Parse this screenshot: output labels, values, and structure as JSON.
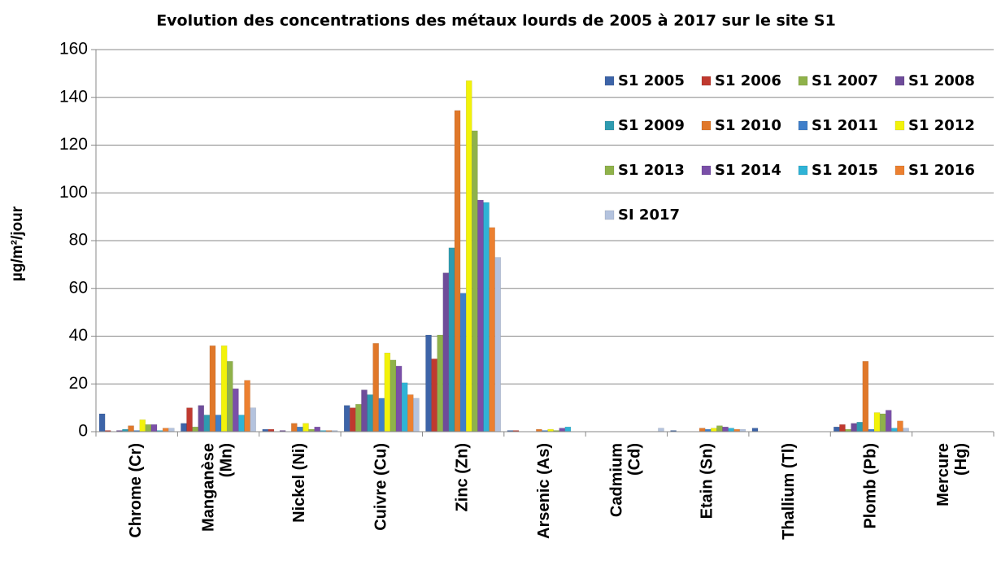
{
  "chart_data": {
    "type": "bar",
    "title": "Evolution des concentrations des métaux lourds de 2005 à 2017 sur le site S1",
    "y_label": "µg/m²/jour",
    "categories": [
      [
        "Chrome (Cr)"
      ],
      [
        "Manganèse",
        "(Mn)"
      ],
      [
        "Nickel (Ni)"
      ],
      [
        "Cuivre (Cu)"
      ],
      [
        "Zinc (Zn)"
      ],
      [
        "Arsenic (As)"
      ],
      [
        "Cadmium",
        "(Cd)"
      ],
      [
        "Etain (Sn)"
      ],
      [
        "Thallium (Tl)"
      ],
      [
        "Plomb (Pb)"
      ],
      [
        "Mercure",
        "(Hg)"
      ]
    ],
    "series": [
      {
        "name": "S1 2005",
        "color": "#3d64a8",
        "values": [
          7.5,
          3.5,
          1,
          11,
          40.5,
          0.5,
          0.1,
          0.5,
          1.5,
          2,
          0.1
        ]
      },
      {
        "name": "S1 2006",
        "color": "#c0392f",
        "values": [
          0.5,
          10,
          1,
          10,
          30.5,
          0.5,
          0.1,
          0,
          0,
          3,
          0.1
        ]
      },
      {
        "name": "S1 2007",
        "color": "#8fb24a",
        "values": [
          0,
          2,
          0,
          11.5,
          40.5,
          0,
          0.1,
          0,
          0,
          1,
          0.1
        ]
      },
      {
        "name": "S1 2008",
        "color": "#6e4c9a",
        "values": [
          0.5,
          11,
          0.5,
          17.5,
          66.5,
          0,
          0.1,
          0,
          0,
          3.5,
          0.1
        ]
      },
      {
        "name": "S1 2009",
        "color": "#2e9bb0",
        "values": [
          1,
          7,
          0,
          15.5,
          77,
          0,
          0.1,
          0,
          0,
          4,
          0.1
        ]
      },
      {
        "name": "S1 2010",
        "color": "#e0782a",
        "values": [
          2.5,
          36,
          3.5,
          37,
          134.5,
          1,
          0.1,
          1.5,
          0,
          29.5,
          0.1
        ]
      },
      {
        "name": "S1 2011",
        "color": "#3f7fc9",
        "values": [
          0.5,
          7,
          2,
          14,
          58,
          0.5,
          0.1,
          1,
          0,
          1,
          0.1
        ]
      },
      {
        "name": "S1 2012",
        "color": "#f2f20a",
        "values": [
          5,
          36,
          3.5,
          33,
          147,
          1,
          0.1,
          1.5,
          0,
          8,
          0.1
        ]
      },
      {
        "name": "S1 2013",
        "color": "#8fb24a",
        "values": [
          3,
          29.5,
          1,
          30,
          126,
          0.5,
          0.1,
          2.5,
          0,
          7.5,
          0.1
        ]
      },
      {
        "name": "S1 2014",
        "color": "#7a4fa8",
        "values": [
          3,
          18,
          2,
          27.5,
          97,
          1.5,
          0.1,
          2,
          0,
          9,
          0.1
        ]
      },
      {
        "name": "S1 2015",
        "color": "#2fb3d6",
        "values": [
          0.5,
          7,
          0.5,
          20.5,
          96,
          2,
          0.1,
          1.5,
          0,
          1.5,
          0.1
        ]
      },
      {
        "name": "S1 2016",
        "color": "#ec8030",
        "values": [
          1.5,
          21.5,
          0.5,
          15.5,
          85.5,
          0,
          0.1,
          1,
          0,
          4.5,
          0.1
        ]
      },
      {
        "name": "SI 2017",
        "color": "#b4c3de",
        "values": [
          1.5,
          10,
          0.5,
          14,
          73,
          0,
          1.5,
          1,
          0,
          1.5,
          0.1
        ]
      }
    ],
    "ylim": [
      0,
      160
    ],
    "yticks": [
      0,
      20,
      40,
      60,
      80,
      100,
      120,
      140,
      160
    ],
    "grid": true,
    "legend": "top-right"
  }
}
